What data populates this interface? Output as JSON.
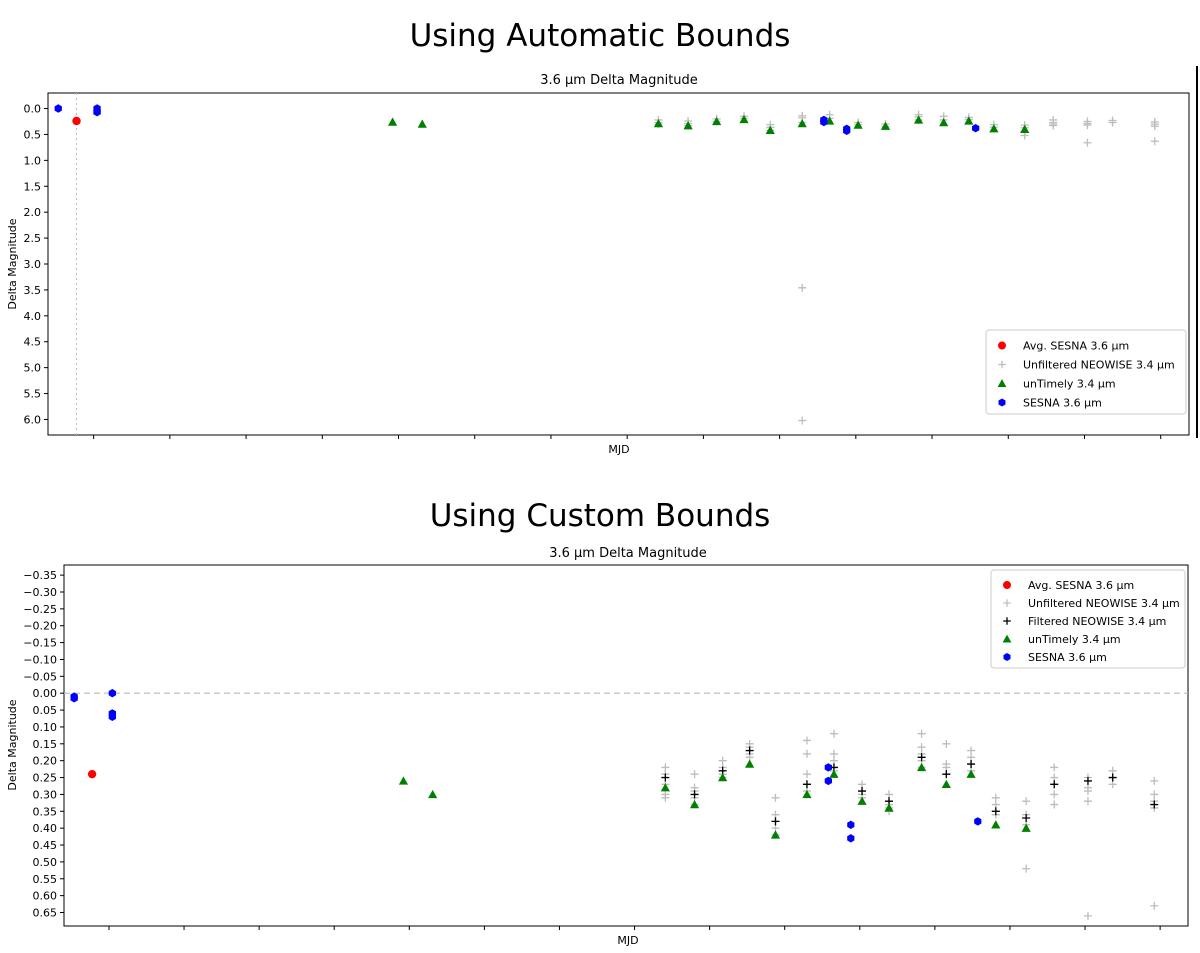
{
  "headings": {
    "top": "Using Automatic Bounds",
    "bottom": "Using Custom Bounds"
  },
  "chart_data": [
    {
      "type": "scatter",
      "title": "3.6 μm Delta Magnitude",
      "xlabel": "MJD",
      "ylabel": "Delta Magnitude",
      "yinverted": true,
      "ylim": [
        -0.3,
        6.3
      ],
      "yticks": [
        0.0,
        0.5,
        1.0,
        1.5,
        2.0,
        2.5,
        3.0,
        3.5,
        4.0,
        4.5,
        5.0,
        5.5,
        6.0
      ],
      "ytick_labels": [
        "0.0",
        "0.5",
        "1.0",
        "1.5",
        "2.0",
        "2.5",
        "3.0",
        "3.5",
        "4.0",
        "4.5",
        "5.0",
        "5.5",
        "6.0"
      ],
      "xlim": [
        0,
        1000
      ],
      "xtick_count": 15,
      "xtick_labels_shown": false,
      "vline": {
        "x": 25,
        "style": "dotted"
      },
      "legend": {
        "position": "lower-right"
      },
      "legend_entries": [
        {
          "name": "Avg. SESNA 3.6 μm",
          "marker": "circle",
          "color": "#ff0000"
        },
        {
          "name": "Unfiltered NEOWISE 3.4 μm",
          "marker": "plus",
          "color": "#bdbdbd"
        },
        {
          "name": "unTimely 3.4 μm",
          "marker": "triangle",
          "color": "#008000"
        },
        {
          "name": "SESNA 3.6 μm",
          "marker": "hexagon",
          "color": "#0000ff"
        }
      ],
      "series": [
        {
          "name": "Avg. SESNA 3.6 μm",
          "points": [
            [
              25,
              0.24
            ]
          ]
        },
        {
          "name": "Unfiltered NEOWISE 3.4 μm",
          "points": [
            [
              535,
              0.22
            ],
            [
              535,
              0.27
            ],
            [
              535,
              0.3
            ],
            [
              561,
              0.24
            ],
            [
              561,
              0.29
            ],
            [
              561,
              0.33
            ],
            [
              586,
              0.2
            ],
            [
              586,
              0.25
            ],
            [
              610,
              0.15
            ],
            [
              610,
              0.19
            ],
            [
              633,
              0.31
            ],
            [
              633,
              0.36
            ],
            [
              633,
              0.42
            ],
            [
              661,
              0.14
            ],
            [
              661,
              0.18
            ],
            [
              661,
              0.27
            ],
            [
              661,
              3.46
            ],
            [
              661,
              6.02
            ],
            [
              685,
              0.12
            ],
            [
              685,
              0.19
            ],
            [
              710,
              0.27
            ],
            [
              710,
              0.31
            ],
            [
              734,
              0.3
            ],
            [
              734,
              0.35
            ],
            [
              763,
              0.12
            ],
            [
              763,
              0.16
            ],
            [
              763,
              0.22
            ],
            [
              785,
              0.15
            ],
            [
              785,
              0.22
            ],
            [
              807,
              0.17
            ],
            [
              807,
              0.21
            ],
            [
              829,
              0.31
            ],
            [
              829,
              0.36
            ],
            [
              856,
              0.32
            ],
            [
              856,
              0.37
            ],
            [
              856,
              0.45
            ],
            [
              856,
              0.52
            ],
            [
              881,
              0.22
            ],
            [
              881,
              0.27
            ],
            [
              881,
              0.3
            ],
            [
              881,
              0.33
            ],
            [
              911,
              0.25
            ],
            [
              911,
              0.29
            ],
            [
              911,
              0.32
            ],
            [
              911,
              0.66
            ],
            [
              933,
              0.23
            ],
            [
              933,
              0.27
            ],
            [
              970,
              0.26
            ],
            [
              970,
              0.3
            ],
            [
              970,
              0.34
            ],
            [
              970,
              0.63
            ]
          ]
        },
        {
          "name": "unTimely 3.4 μm",
          "points": [
            [
              302,
              0.26
            ],
            [
              328,
              0.3
            ],
            [
              535,
              0.29
            ],
            [
              561,
              0.33
            ],
            [
              586,
              0.25
            ],
            [
              610,
              0.21
            ],
            [
              633,
              0.42
            ],
            [
              661,
              0.29
            ],
            [
              685,
              0.24
            ],
            [
              710,
              0.32
            ],
            [
              734,
              0.34
            ],
            [
              763,
              0.22
            ],
            [
              785,
              0.27
            ],
            [
              807,
              0.24
            ],
            [
              829,
              0.39
            ],
            [
              856,
              0.4
            ]
          ]
        },
        {
          "name": "SESNA 3.6 μm",
          "points": [
            [
              9,
              0.0
            ],
            [
              43,
              0.0
            ],
            [
              43,
              0.06
            ],
            [
              43,
              0.07
            ],
            [
              680,
              0.22
            ],
            [
              680,
              0.26
            ],
            [
              700,
              0.39
            ],
            [
              700,
              0.43
            ],
            [
              813,
              0.38
            ]
          ]
        }
      ]
    },
    {
      "type": "scatter",
      "title": "3.6 μm Delta Magnitude",
      "xlabel": "MJD",
      "ylabel": "Delta Magnitude",
      "yinverted": true,
      "ylim": [
        -0.38,
        0.69
      ],
      "yticks": [
        -0.35,
        -0.3,
        -0.25,
        -0.2,
        -0.15,
        -0.1,
        -0.05,
        0.0,
        0.05,
        0.1,
        0.15,
        0.2,
        0.25,
        0.3,
        0.35,
        0.4,
        0.45,
        0.5,
        0.55,
        0.6,
        0.65
      ],
      "ytick_labels": [
        "−0.35",
        "−0.30",
        "−0.25",
        "−0.20",
        "−0.15",
        "−0.10",
        "−0.05",
        "0.00",
        "0.05",
        "0.10",
        "0.15",
        "0.20",
        "0.25",
        "0.30",
        "0.35",
        "0.40",
        "0.45",
        "0.50",
        "0.55",
        "0.60",
        "0.65"
      ],
      "xlim": [
        0,
        1000
      ],
      "xtick_count": 15,
      "xtick_labels_shown": false,
      "hline": {
        "y": 0.0,
        "style": "dashed"
      },
      "legend": {
        "position": "upper-right"
      },
      "legend_entries": [
        {
          "name": "Avg. SESNA 3.6 μm",
          "marker": "circle",
          "color": "#ff0000"
        },
        {
          "name": "Unfiltered NEOWISE 3.4 μm",
          "marker": "plus",
          "color": "#bdbdbd"
        },
        {
          "name": "Filtered NEOWISE 3.4 μm",
          "marker": "plus",
          "color": "#000000"
        },
        {
          "name": "unTimely 3.4 μm",
          "marker": "triangle",
          "color": "#008000"
        },
        {
          "name": "SESNA 3.6 μm",
          "marker": "hexagon",
          "color": "#0000ff"
        }
      ],
      "series": [
        {
          "name": "Avg. SESNA 3.6 μm",
          "points": [
            [
              25,
              0.24
            ]
          ]
        },
        {
          "name": "Unfiltered NEOWISE 3.4 μm",
          "points": [
            [
              535,
              0.22
            ],
            [
              535,
              0.24
            ],
            [
              535,
              0.27
            ],
            [
              535,
              0.3
            ],
            [
              535,
              0.31
            ],
            [
              561,
              0.24
            ],
            [
              561,
              0.28
            ],
            [
              561,
              0.29
            ],
            [
              561,
              0.31
            ],
            [
              561,
              0.33
            ],
            [
              586,
              0.2
            ],
            [
              586,
              0.22
            ],
            [
              586,
              0.24
            ],
            [
              586,
              0.25
            ],
            [
              610,
              0.15
            ],
            [
              610,
              0.16
            ],
            [
              610,
              0.18
            ],
            [
              610,
              0.19
            ],
            [
              633,
              0.31
            ],
            [
              633,
              0.36
            ],
            [
              633,
              0.38
            ],
            [
              633,
              0.4
            ],
            [
              633,
              0.42
            ],
            [
              661,
              0.14
            ],
            [
              661,
              0.18
            ],
            [
              661,
              0.24
            ],
            [
              661,
              0.27
            ],
            [
              661,
              0.29
            ],
            [
              685,
              0.12
            ],
            [
              685,
              0.18
            ],
            [
              685,
              0.2
            ],
            [
              685,
              0.22
            ],
            [
              685,
              0.23
            ],
            [
              710,
              0.27
            ],
            [
              710,
              0.29
            ],
            [
              710,
              0.3
            ],
            [
              710,
              0.31
            ],
            [
              734,
              0.3
            ],
            [
              734,
              0.32
            ],
            [
              734,
              0.33
            ],
            [
              734,
              0.34
            ],
            [
              734,
              0.35
            ],
            [
              763,
              0.12
            ],
            [
              763,
              0.16
            ],
            [
              763,
              0.18
            ],
            [
              763,
              0.2
            ],
            [
              763,
              0.22
            ],
            [
              785,
              0.15
            ],
            [
              785,
              0.21
            ],
            [
              785,
              0.22
            ],
            [
              785,
              0.24
            ],
            [
              807,
              0.17
            ],
            [
              807,
              0.19
            ],
            [
              807,
              0.21
            ],
            [
              807,
              0.23
            ],
            [
              829,
              0.31
            ],
            [
              829,
              0.33
            ],
            [
              829,
              0.35
            ],
            [
              829,
              0.36
            ],
            [
              856,
              0.32
            ],
            [
              856,
              0.36
            ],
            [
              856,
              0.39
            ],
            [
              856,
              0.52
            ],
            [
              881,
              0.22
            ],
            [
              881,
              0.25
            ],
            [
              881,
              0.27
            ],
            [
              881,
              0.3
            ],
            [
              881,
              0.33
            ],
            [
              911,
              0.25
            ],
            [
              911,
              0.28
            ],
            [
              911,
              0.29
            ],
            [
              911,
              0.32
            ],
            [
              911,
              0.66
            ],
            [
              933,
              0.23
            ],
            [
              933,
              0.25
            ],
            [
              933,
              0.27
            ],
            [
              970,
              0.26
            ],
            [
              970,
              0.3
            ],
            [
              970,
              0.32
            ],
            [
              970,
              0.34
            ],
            [
              970,
              0.63
            ]
          ]
        },
        {
          "name": "Filtered NEOWISE 3.4 μm",
          "points": [
            [
              535,
              0.25
            ],
            [
              561,
              0.3
            ],
            [
              586,
              0.23
            ],
            [
              610,
              0.17
            ],
            [
              633,
              0.38
            ],
            [
              661,
              0.27
            ],
            [
              685,
              0.22
            ],
            [
              710,
              0.29
            ],
            [
              734,
              0.32
            ],
            [
              763,
              0.19
            ],
            [
              785,
              0.24
            ],
            [
              807,
              0.21
            ],
            [
              829,
              0.35
            ],
            [
              856,
              0.37
            ],
            [
              881,
              0.27
            ],
            [
              911,
              0.26
            ],
            [
              933,
              0.25
            ],
            [
              970,
              0.33
            ]
          ]
        },
        {
          "name": "unTimely 3.4 μm",
          "points": [
            [
              302,
              0.26
            ],
            [
              328,
              0.3
            ],
            [
              535,
              0.28
            ],
            [
              561,
              0.33
            ],
            [
              586,
              0.25
            ],
            [
              610,
              0.21
            ],
            [
              633,
              0.42
            ],
            [
              661,
              0.3
            ],
            [
              685,
              0.24
            ],
            [
              710,
              0.32
            ],
            [
              734,
              0.34
            ],
            [
              763,
              0.22
            ],
            [
              785,
              0.27
            ],
            [
              807,
              0.24
            ],
            [
              829,
              0.39
            ],
            [
              856,
              0.4
            ]
          ]
        },
        {
          "name": "SESNA 3.6 μm",
          "points": [
            [
              9,
              0.01
            ],
            [
              9,
              0.015
            ],
            [
              43,
              0.0
            ],
            [
              43,
              0.06
            ],
            [
              43,
              0.07
            ],
            [
              680,
              0.22
            ],
            [
              680,
              0.26
            ],
            [
              700,
              0.39
            ],
            [
              700,
              0.43
            ],
            [
              813,
              0.38
            ]
          ]
        }
      ]
    }
  ]
}
